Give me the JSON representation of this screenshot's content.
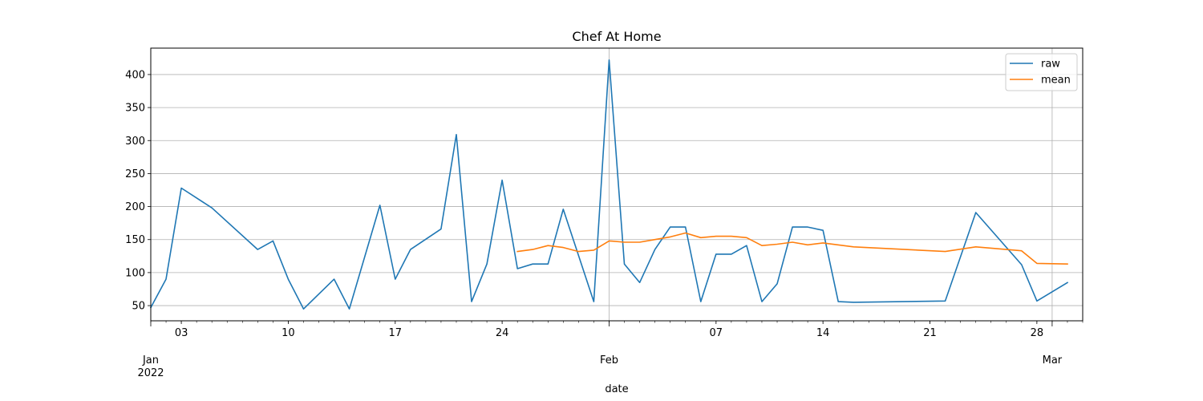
{
  "chart_data": {
    "type": "line",
    "title": "Chef At Home",
    "xlabel": "date",
    "ylabel": "",
    "ylim": [
      27,
      440
    ],
    "xlim": [
      "2022-01-01",
      "2022-03-03"
    ],
    "grid": true,
    "legend_position": "top-right",
    "y_ticks": [
      50,
      100,
      150,
      200,
      250,
      300,
      350,
      400
    ],
    "x_ticks_minor": [
      {
        "date": "2022-01-03",
        "label": "03"
      },
      {
        "date": "2022-01-10",
        "label": "10"
      },
      {
        "date": "2022-01-17",
        "label": "17"
      },
      {
        "date": "2022-01-24",
        "label": "24"
      },
      {
        "date": "2022-02-07",
        "label": "07"
      },
      {
        "date": "2022-02-14",
        "label": "14"
      },
      {
        "date": "2022-02-21",
        "label": "21"
      },
      {
        "date": "2022-02-28",
        "label": "28"
      }
    ],
    "x_ticks_major": [
      {
        "date": "2022-01-01",
        "label": "Jan",
        "sublabel": "2022",
        "grid": false
      },
      {
        "date": "2022-01-31",
        "label": "Feb",
        "sublabel": "",
        "grid": true
      },
      {
        "date": "2022-03-01",
        "label": "Mar",
        "sublabel": "",
        "grid": true
      }
    ],
    "series": [
      {
        "name": "raw",
        "color": "#1f77b4",
        "points": [
          [
            "2022-01-01",
            47
          ],
          [
            "2022-01-02",
            90
          ],
          [
            "2022-01-03",
            228
          ],
          [
            "2022-01-05",
            198
          ],
          [
            "2022-01-08",
            135
          ],
          [
            "2022-01-09",
            148
          ],
          [
            "2022-01-10",
            90
          ],
          [
            "2022-01-11",
            45
          ],
          [
            "2022-01-13",
            90
          ],
          [
            "2022-01-14",
            45
          ],
          [
            "2022-01-16",
            202
          ],
          [
            "2022-01-17",
            90
          ],
          [
            "2022-01-18",
            135
          ],
          [
            "2022-01-20",
            166
          ],
          [
            "2022-01-21",
            309
          ],
          [
            "2022-01-22",
            56
          ],
          [
            "2022-01-23",
            113
          ],
          [
            "2022-01-24",
            240
          ],
          [
            "2022-01-25",
            106
          ],
          [
            "2022-01-26",
            113
          ],
          [
            "2022-01-27",
            113
          ],
          [
            "2022-01-28",
            196
          ],
          [
            "2022-01-30",
            56
          ],
          [
            "2022-01-31",
            422
          ],
          [
            "2022-02-01",
            113
          ],
          [
            "2022-02-02",
            85
          ],
          [
            "2022-02-03",
            135
          ],
          [
            "2022-02-04",
            169
          ],
          [
            "2022-02-05",
            169
          ],
          [
            "2022-02-06",
            56
          ],
          [
            "2022-02-07",
            128
          ],
          [
            "2022-02-08",
            128
          ],
          [
            "2022-02-09",
            141
          ],
          [
            "2022-02-10",
            56
          ],
          [
            "2022-02-11",
            83
          ],
          [
            "2022-02-12",
            169
          ],
          [
            "2022-02-13",
            169
          ],
          [
            "2022-02-14",
            164
          ],
          [
            "2022-02-15",
            56
          ],
          [
            "2022-02-16",
            55
          ],
          [
            "2022-02-22",
            57
          ],
          [
            "2022-02-24",
            191
          ],
          [
            "2022-02-27",
            112
          ],
          [
            "2022-02-28",
            57
          ],
          [
            "2022-03-02",
            85
          ]
        ]
      },
      {
        "name": "mean",
        "color": "#ff7f0e",
        "points": [
          [
            "2022-01-25",
            132
          ],
          [
            "2022-01-26",
            135
          ],
          [
            "2022-01-27",
            141
          ],
          [
            "2022-01-28",
            138
          ],
          [
            "2022-01-29",
            132
          ],
          [
            "2022-01-30",
            134
          ],
          [
            "2022-01-31",
            148
          ],
          [
            "2022-02-01",
            146
          ],
          [
            "2022-02-02",
            146
          ],
          [
            "2022-02-03",
            150
          ],
          [
            "2022-02-04",
            154
          ],
          [
            "2022-02-05",
            160
          ],
          [
            "2022-02-06",
            153
          ],
          [
            "2022-02-07",
            155
          ],
          [
            "2022-02-08",
            155
          ],
          [
            "2022-02-09",
            153
          ],
          [
            "2022-02-10",
            141
          ],
          [
            "2022-02-11",
            143
          ],
          [
            "2022-02-12",
            146
          ],
          [
            "2022-02-13",
            142
          ],
          [
            "2022-02-14",
            145
          ],
          [
            "2022-02-16",
            139
          ],
          [
            "2022-02-22",
            132
          ],
          [
            "2022-02-24",
            139
          ],
          [
            "2022-02-27",
            133
          ],
          [
            "2022-02-28",
            114
          ],
          [
            "2022-03-02",
            113
          ]
        ]
      }
    ]
  }
}
